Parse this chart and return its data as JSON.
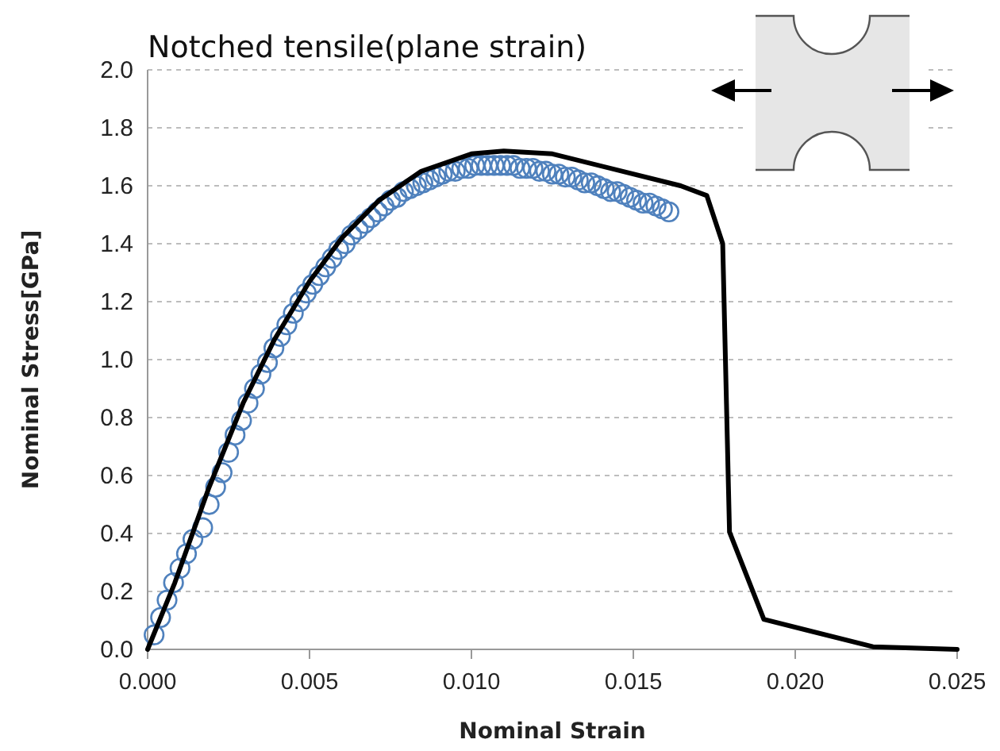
{
  "chart_data": {
    "type": "line",
    "title": "Notched tensile(plane strain)",
    "xlabel": "Nominal Strain",
    "ylabel": "Nominal Stress[GPa]",
    "xlim": [
      0,
      0.025
    ],
    "xticks": [
      {
        "value": 0,
        "label": "0.000"
      },
      {
        "value": 0.005,
        "label": "0.005"
      },
      {
        "value": 0.01,
        "label": "0.010"
      },
      {
        "value": 0.015,
        "label": "0.015"
      },
      {
        "value": 0.02,
        "label": "0.020"
      },
      {
        "value": 0.025,
        "label": "0.025"
      }
    ],
    "ylim": [
      0,
      2
    ],
    "yticks": [
      {
        "value": 0,
        "label": "0.0"
      },
      {
        "value": 0.2,
        "label": "0.2"
      },
      {
        "value": 0.4,
        "label": "0.4"
      },
      {
        "value": 0.6,
        "label": "0.6"
      },
      {
        "value": 0.8,
        "label": "0.8"
      },
      {
        "value": 1,
        "label": "1.0"
      },
      {
        "value": 1.2,
        "label": "1.2"
      },
      {
        "value": 1.4,
        "label": "1.4"
      },
      {
        "value": 1.6,
        "label": "1.6"
      },
      {
        "value": 1.8,
        "label": "1.8"
      },
      {
        "value": 2,
        "label": "2.0"
      }
    ],
    "grid": "y",
    "series": [
      {
        "type": "line",
        "color": "#000000",
        "marker": "none",
        "line_style": "solid",
        "x": [
          0,
          0.00084,
          0.0019,
          0.00295,
          0.00392,
          0.005,
          0.006,
          0.00715,
          0.00845,
          0.01,
          0.011,
          0.0125,
          0.01646,
          0.01727,
          0.01776,
          0.01797,
          0.01903,
          0.0224,
          0.025
        ],
        "values": [
          0,
          0.23,
          0.56,
          0.85,
          1.07,
          1.27,
          1.42,
          1.55,
          1.65,
          1.71,
          1.72,
          1.71,
          1.6,
          1.566,
          1.4,
          0.405,
          0.104,
          0.009,
          0
        ]
      },
      {
        "type": "scatter",
        "color": "#4f81bd",
        "marker": "circle",
        "x": [
          0.0002,
          0.0004,
          0.0006,
          0.0008,
          0.001,
          0.0012,
          0.0014,
          0.0017,
          0.0019,
          0.0021,
          0.0023,
          0.0025,
          0.0027,
          0.0029,
          0.0031,
          0.0033,
          0.0035,
          0.0037,
          0.0039,
          0.0041,
          0.0043,
          0.0045,
          0.0047,
          0.0049,
          0.0051,
          0.0053,
          0.0055,
          0.0057,
          0.0059,
          0.0061,
          0.0063,
          0.0065,
          0.0067,
          0.0069,
          0.0071,
          0.0073,
          0.0075,
          0.0077,
          0.0079,
          0.0081,
          0.0083,
          0.0085,
          0.0087,
          0.0089,
          0.0091,
          0.0093,
          0.0095,
          0.0097,
          0.0099,
          0.0101,
          0.0103,
          0.0105,
          0.0107,
          0.0109,
          0.0111,
          0.0113,
          0.0115,
          0.0117,
          0.0119,
          0.0121,
          0.0123,
          0.0125,
          0.0127,
          0.0129,
          0.0131,
          0.0133,
          0.0135,
          0.0137,
          0.0139,
          0.0141,
          0.0143,
          0.0145,
          0.0147,
          0.0149,
          0.0151,
          0.0153,
          0.0155,
          0.0157,
          0.0159,
          0.0161
        ],
        "values": [
          0.05,
          0.11,
          0.17,
          0.23,
          0.28,
          0.33,
          0.38,
          0.42,
          0.5,
          0.56,
          0.61,
          0.68,
          0.74,
          0.79,
          0.85,
          0.9,
          0.95,
          0.99,
          1.04,
          1.08,
          1.12,
          1.16,
          1.2,
          1.23,
          1.26,
          1.29,
          1.32,
          1.35,
          1.38,
          1.4,
          1.43,
          1.45,
          1.47,
          1.49,
          1.51,
          1.53,
          1.55,
          1.56,
          1.58,
          1.59,
          1.6,
          1.61,
          1.62,
          1.63,
          1.64,
          1.65,
          1.65,
          1.66,
          1.66,
          1.67,
          1.67,
          1.67,
          1.67,
          1.67,
          1.67,
          1.67,
          1.66,
          1.66,
          1.66,
          1.65,
          1.65,
          1.64,
          1.64,
          1.63,
          1.63,
          1.62,
          1.61,
          1.61,
          1.6,
          1.59,
          1.58,
          1.58,
          1.57,
          1.56,
          1.55,
          1.54,
          1.54,
          1.53,
          1.52,
          1.51
        ]
      }
    ]
  }
}
